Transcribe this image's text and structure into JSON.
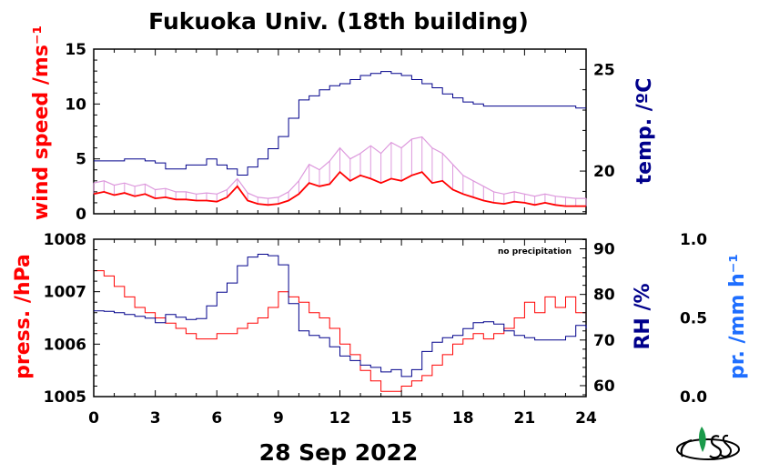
{
  "chart_data": [
    {
      "type": "line",
      "title": "Fukuoka Univ. (18th building)",
      "xlabel": "28 Sep 2022",
      "xlim": [
        0,
        24
      ],
      "x_ticks": [
        0,
        3,
        6,
        9,
        12,
        15,
        18,
        21,
        24
      ],
      "x_tick_labels": [
        "0",
        "3",
        "6",
        "9",
        "12",
        "15",
        "18",
        "21",
        "24"
      ],
      "ylabel_left": "wind speed /ms⁻¹",
      "ylim_left": [
        0,
        15
      ],
      "yticks_left": [
        "0",
        "5",
        "10",
        "15"
      ],
      "ylabel_right": "temp. /ºC",
      "ylim_right": [
        17.9,
        26.0
      ],
      "yticks_right": [
        "20",
        "25"
      ],
      "colors": {
        "wind_gust": "#dd99dd",
        "wind_mean": "#ff0000",
        "temperature": "#00008b",
        "left_label": "#ff0000",
        "right_label": "#00008b"
      },
      "series": [
        {
          "axis": "left",
          "x": [
            0,
            0.5,
            1,
            1.5,
            2,
            2.5,
            3,
            3.5,
            4,
            4.5,
            5,
            5.5,
            6,
            6.5,
            7,
            7.5,
            8,
            8.5,
            9,
            9.5,
            10,
            10.5,
            11,
            11.5,
            12,
            12.5,
            13,
            13.5,
            14,
            14.5,
            15,
            15.5,
            16,
            16.5,
            17,
            17.5,
            18,
            18.5,
            19,
            19.5,
            20,
            20.5,
            21,
            21.5,
            22,
            22.5,
            23,
            23.5,
            24
          ],
          "values": [
            2.8,
            3.0,
            2.6,
            2.8,
            2.5,
            2.7,
            2.2,
            2.3,
            2.0,
            2.0,
            1.8,
            1.9,
            1.8,
            2.2,
            3.2,
            1.9,
            1.5,
            1.4,
            1.5,
            2.0,
            3.0,
            4.5,
            4.0,
            4.8,
            6.0,
            5.0,
            5.5,
            6.2,
            5.5,
            6.5,
            6.0,
            6.8,
            7.0,
            6.0,
            5.5,
            4.5,
            3.5,
            3.0,
            2.5,
            2.0,
            1.8,
            2.0,
            1.8,
            1.6,
            1.8,
            1.6,
            1.5,
            1.4,
            1.4
          ]
        },
        {
          "axis": "left",
          "x": [
            0,
            0.5,
            1,
            1.5,
            2,
            2.5,
            3,
            3.5,
            4,
            4.5,
            5,
            5.5,
            6,
            6.5,
            7,
            7.5,
            8,
            8.5,
            9,
            9.5,
            10,
            10.5,
            11,
            11.5,
            12,
            12.5,
            13,
            13.5,
            14,
            14.5,
            15,
            15.5,
            16,
            16.5,
            17,
            17.5,
            18,
            18.5,
            19,
            19.5,
            20,
            20.5,
            21,
            21.5,
            22,
            22.5,
            23,
            23.5,
            24
          ],
          "values": [
            1.8,
            2.0,
            1.7,
            1.9,
            1.6,
            1.8,
            1.4,
            1.5,
            1.3,
            1.3,
            1.2,
            1.2,
            1.1,
            1.5,
            2.5,
            1.2,
            0.9,
            0.8,
            0.9,
            1.2,
            1.8,
            2.8,
            2.5,
            2.7,
            3.8,
            3.0,
            3.5,
            3.2,
            2.8,
            3.2,
            3.0,
            3.5,
            3.8,
            2.8,
            3.0,
            2.2,
            1.8,
            1.5,
            1.2,
            1.0,
            0.9,
            1.1,
            1.0,
            0.8,
            1.0,
            0.8,
            0.7,
            0.7,
            0.7
          ]
        },
        {
          "axis": "right",
          "x": [
            0,
            0.5,
            1,
            1.5,
            2,
            2.5,
            3,
            3.5,
            4,
            4.5,
            5,
            5.5,
            6,
            6.5,
            7,
            7.5,
            8,
            8.5,
            9,
            9.5,
            10,
            10.5,
            11,
            11.5,
            12,
            12.5,
            13,
            13.5,
            14,
            14.5,
            15,
            15.5,
            16,
            16.5,
            17,
            17.5,
            18,
            18.5,
            19,
            19.5,
            20,
            20.5,
            21,
            21.5,
            22,
            22.5,
            23,
            23.5,
            24
          ],
          "values": [
            20.5,
            20.5,
            20.5,
            20.6,
            20.6,
            20.5,
            20.4,
            20.1,
            20.1,
            20.3,
            20.3,
            20.6,
            20.3,
            20.1,
            19.8,
            20.2,
            20.6,
            21.1,
            21.7,
            22.6,
            23.5,
            23.7,
            24.0,
            24.2,
            24.3,
            24.5,
            24.7,
            24.8,
            24.9,
            24.8,
            24.7,
            24.5,
            24.3,
            24.1,
            23.8,
            23.6,
            23.4,
            23.3,
            23.2,
            23.2,
            23.2,
            23.2,
            23.2,
            23.2,
            23.2,
            23.2,
            23.2,
            23.1,
            23.1
          ]
        }
      ]
    },
    {
      "type": "line",
      "xlim": [
        0,
        24
      ],
      "x_ticks": [
        0,
        3,
        6,
        9,
        12,
        15,
        18,
        21,
        24
      ],
      "ylabel_left": "press. /hPa",
      "ylim_left": [
        1005,
        1008
      ],
      "yticks_left": [
        "1005",
        "1006",
        "1007",
        "1008"
      ],
      "ylabel_right": "RH /%",
      "ylim_right": [
        57.6,
        92.1
      ],
      "yticks_right": [
        "60",
        "70",
        "80",
        "90"
      ],
      "ylabel_far_right": "pr. /mm h⁻¹",
      "ylim_far_right": [
        0.0,
        1.0
      ],
      "yticks_far_right": [
        "0.0",
        "0.5",
        "1.0"
      ],
      "annotation": "no precipitation",
      "colors": {
        "pressure": "#ff0000",
        "humidity": "#00008b",
        "left_label": "#ff0000",
        "right_label": "#00008b",
        "far_right_label": "#1e6eff"
      },
      "series": [
        {
          "axis": "left",
          "x": [
            0,
            0.5,
            1,
            1.5,
            2,
            2.5,
            3,
            3.5,
            4,
            4.5,
            5,
            5.5,
            6,
            6.5,
            7,
            7.5,
            8,
            8.5,
            9,
            9.5,
            10,
            10.5,
            11,
            11.5,
            12,
            12.5,
            13,
            13.5,
            14,
            14.5,
            15,
            15.5,
            16,
            16.5,
            17,
            17.5,
            18,
            18.5,
            19,
            19.5,
            20,
            20.5,
            21,
            21.5,
            22,
            22.5,
            23,
            23.5,
            24
          ],
          "values": [
            1007.4,
            1007.3,
            1007.1,
            1006.9,
            1006.7,
            1006.6,
            1006.5,
            1006.4,
            1006.3,
            1006.2,
            1006.1,
            1006.1,
            1006.2,
            1006.2,
            1006.3,
            1006.4,
            1006.5,
            1006.7,
            1007.0,
            1006.9,
            1006.8,
            1006.6,
            1006.5,
            1006.3,
            1006.0,
            1005.8,
            1005.5,
            1005.3,
            1005.1,
            1005.1,
            1005.2,
            1005.3,
            1005.4,
            1005.6,
            1005.8,
            1006.0,
            1006.1,
            1006.2,
            1006.1,
            1006.2,
            1006.3,
            1006.5,
            1006.8,
            1006.6,
            1006.9,
            1006.7,
            1006.9,
            1006.6,
            1006.6
          ]
        },
        {
          "axis": "right",
          "x": [
            0,
            0.5,
            1,
            1.5,
            2,
            2.5,
            3,
            3.5,
            4,
            4.5,
            5,
            5.5,
            6,
            6.5,
            7,
            7.5,
            8,
            8.5,
            9,
            9.5,
            10,
            10.5,
            11,
            11.5,
            12,
            12.5,
            13,
            13.5,
            14,
            14.5,
            15,
            15.5,
            16,
            16.5,
            17,
            17.5,
            18,
            18.5,
            19,
            19.5,
            20,
            20.5,
            21,
            21.5,
            22,
            22.5,
            23,
            23.5,
            24
          ],
          "values": [
            76.4,
            76.3,
            76.0,
            75.6,
            75.2,
            74.8,
            73.8,
            75.6,
            75.0,
            74.5,
            74.7,
            77.5,
            80.5,
            82.5,
            86.3,
            88.2,
            88.8,
            88.5,
            86.5,
            78.0,
            72.0,
            71.0,
            70.5,
            68.5,
            66.5,
            65.5,
            64.5,
            64.0,
            63.0,
            63.5,
            62.0,
            63.5,
            67.5,
            69.5,
            70.5,
            71.0,
            72.5,
            73.8,
            74.0,
            73.5,
            72.0,
            71.0,
            70.5,
            70.0,
            70.0,
            70.0,
            70.8,
            73.2,
            72.5
          ]
        }
      ]
    },
    {
      "type": "logo",
      "name": "UES",
      "text": "UES"
    }
  ]
}
